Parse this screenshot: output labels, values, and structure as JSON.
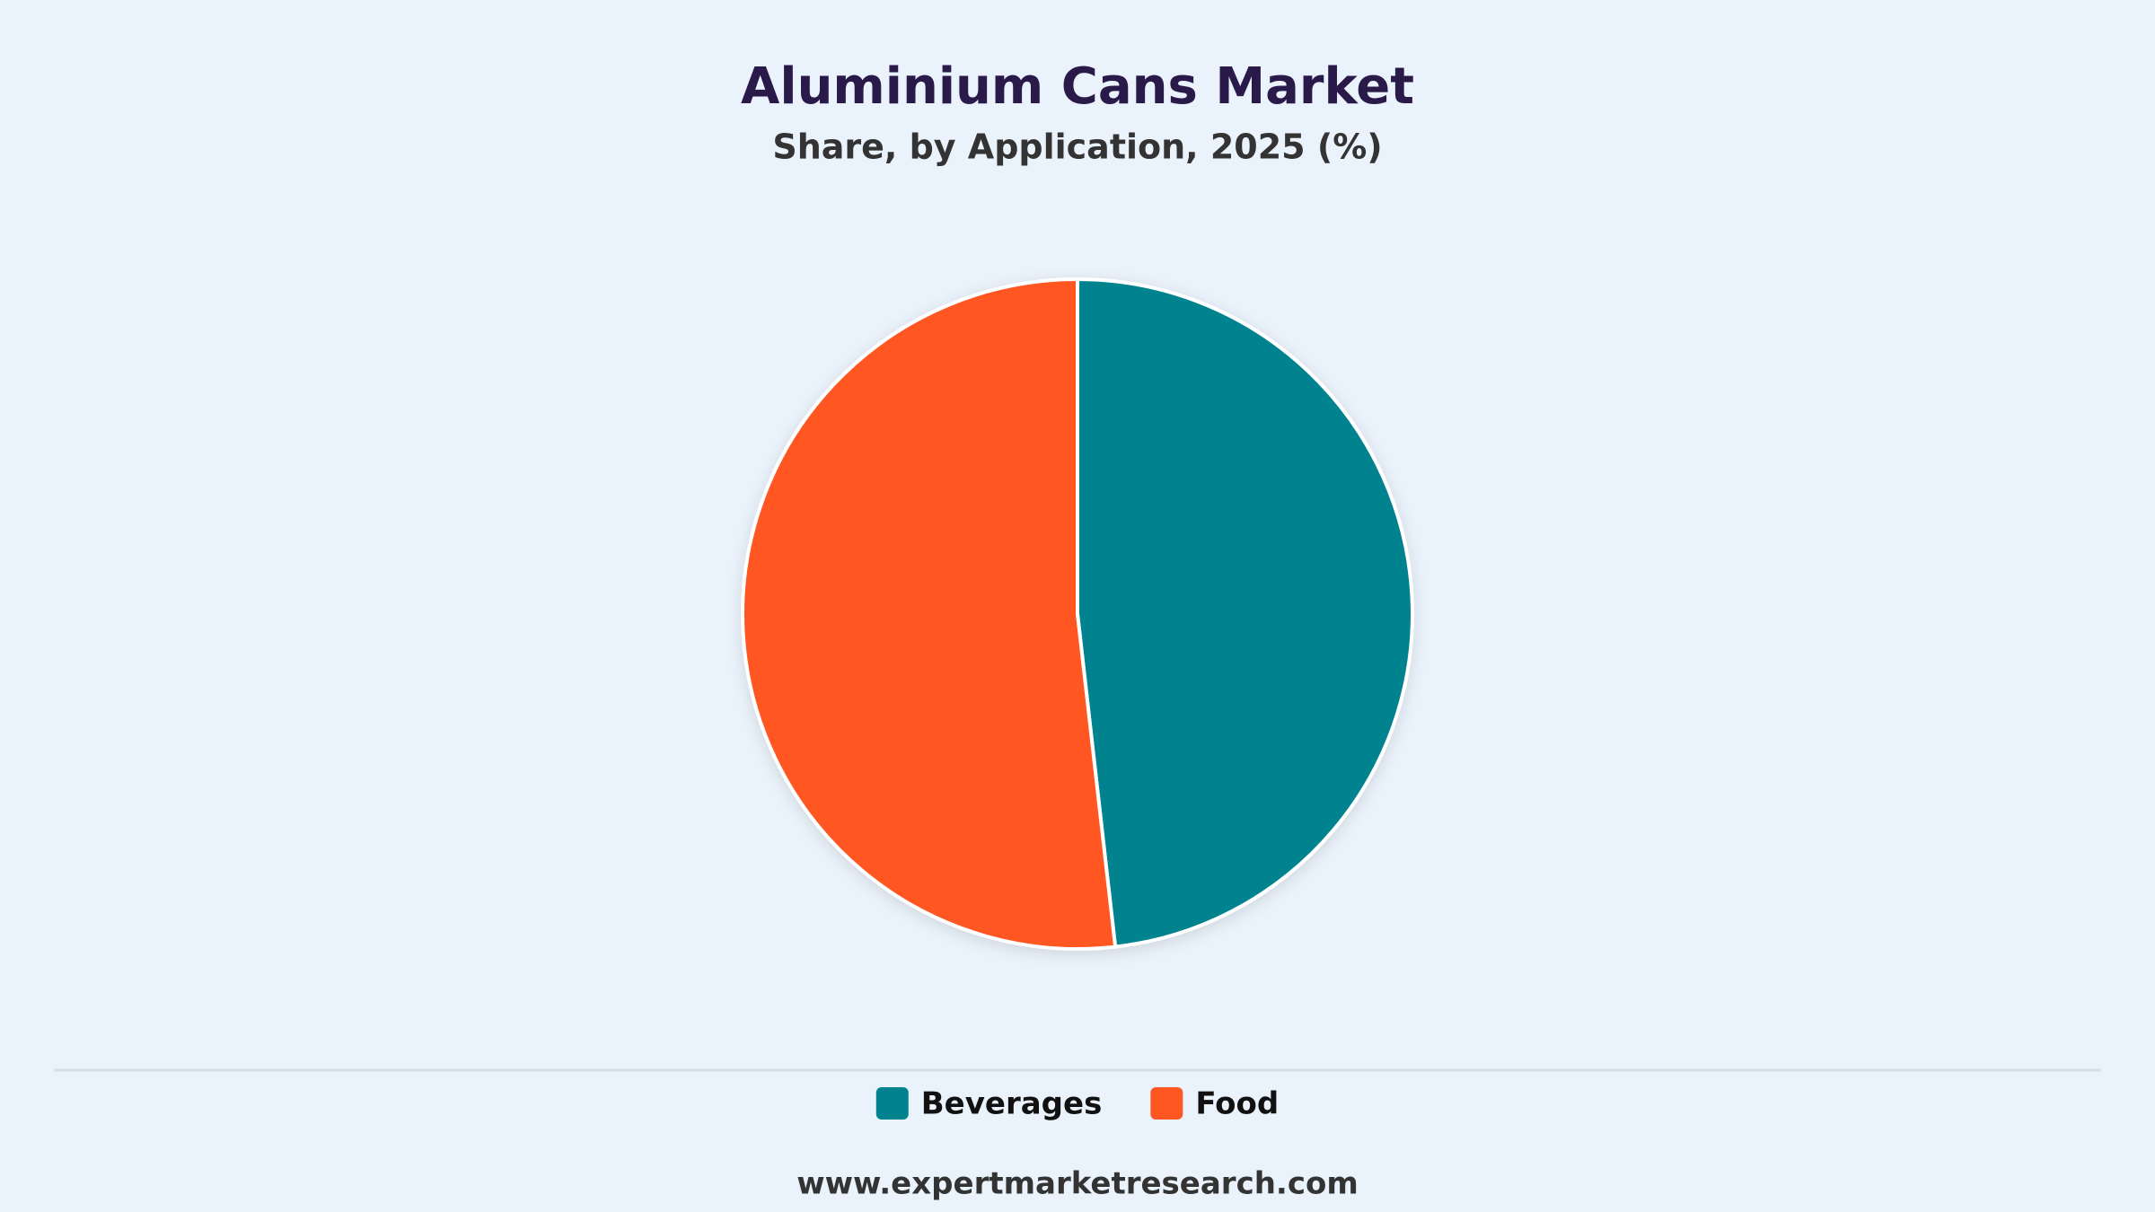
{
  "chart_data": {
    "type": "pie",
    "title": "Aluminium Cans Market",
    "subtitle": "Share, by Application, 2025 (%)",
    "categories": [
      "Beverages",
      "Food"
    ],
    "values": [
      48.2,
      51.8
    ],
    "colors": [
      "#00838f",
      "#ff5722"
    ],
    "source": "www.expertmarketresearch.com"
  }
}
